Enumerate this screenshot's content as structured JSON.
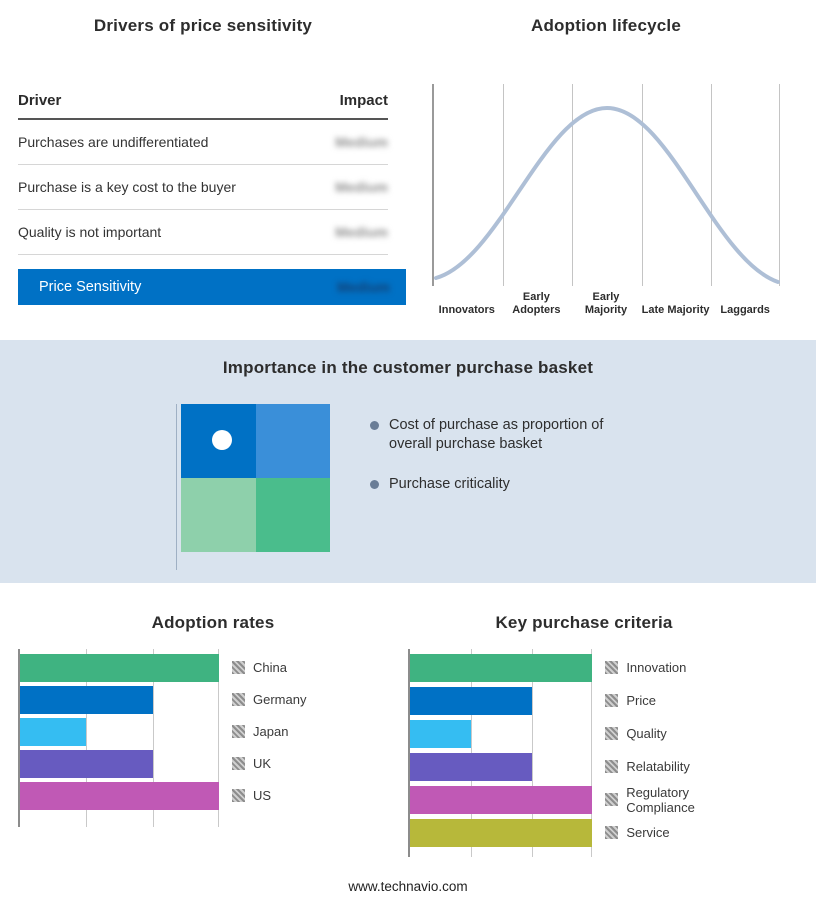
{
  "price_sensitivity": {
    "title": "Drivers of price sensitivity",
    "columns": {
      "driver": "Driver",
      "impact": "Impact"
    },
    "rows": [
      {
        "driver": "Purchases are undifferentiated",
        "impact": "Medium"
      },
      {
        "driver": "Purchase is a key cost to the buyer",
        "impact": "Medium"
      },
      {
        "driver": "Quality is not important",
        "impact": "Medium"
      }
    ],
    "summary": {
      "label": "Price Sensitivity",
      "impact": "Medium"
    },
    "accent_color": "#0071c5"
  },
  "adoption_lifecycle": {
    "title": "Adoption lifecycle",
    "stages": [
      "Innovators",
      "Early Adopters",
      "Early Majority",
      "Late Majority",
      "Laggards"
    ],
    "curve_color": "#aebfd6"
  },
  "purchase_basket": {
    "title": "Importance in the customer purchase basket",
    "bullets": [
      "Cost of purchase as proportion of overall purchase basket",
      "Purchase criticality"
    ],
    "quadrants": {
      "top_left": "#0071c5",
      "top_right": "#3a8fd9",
      "bottom_left": "#8ed0ab",
      "bottom_right": "#4abd8c"
    },
    "background": "#d9e3ee"
  },
  "chart_data": [
    {
      "type": "bar",
      "title": "Adoption rates",
      "orientation": "horizontal",
      "categories": [
        "China",
        "Germany",
        "Japan",
        "UK",
        "US"
      ],
      "values": [
        3,
        2,
        1,
        2,
        3
      ],
      "xlim": [
        0,
        3
      ],
      "grid": true,
      "legend_position": "right",
      "colors": [
        "#3fb381",
        "#0071c5",
        "#35bdf2",
        "#675bc0",
        "#c059b5"
      ]
    },
    {
      "type": "bar",
      "title": "Key purchase criteria",
      "orientation": "horizontal",
      "categories": [
        "Innovation",
        "Price",
        "Quality",
        "Relatability",
        "Regulatory Compliance",
        "Service"
      ],
      "values": [
        3,
        2,
        1,
        2,
        3,
        3
      ],
      "xlim": [
        0,
        3
      ],
      "grid": true,
      "legend_position": "right",
      "colors": [
        "#3fb381",
        "#0071c5",
        "#35bdf2",
        "#675bc0",
        "#c059b5",
        "#b7b83a"
      ]
    }
  ],
  "footer": {
    "text": "www.technavio.com"
  }
}
